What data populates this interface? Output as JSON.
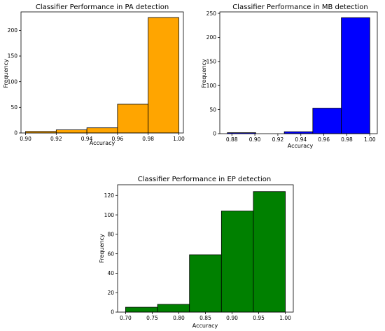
{
  "chart_data": [
    {
      "type": "bar",
      "title": "Classifier Performance in PA detection",
      "xlabel": "Accuracy",
      "ylabel": "Frequency",
      "color": "#ffa500",
      "xlim": [
        0.897,
        1.003
      ],
      "ylim": [
        0,
        236
      ],
      "xticks": [
        0.9,
        0.92,
        0.94,
        0.96,
        0.98,
        1.0
      ],
      "xtick_labels": [
        "0.90",
        "0.92",
        "0.94",
        "0.96",
        "0.98",
        "1.00"
      ],
      "yticks": [
        0,
        50,
        100,
        150,
        200
      ],
      "ytick_labels": [
        "0",
        "50",
        "100",
        "150",
        "200"
      ],
      "bins": [
        {
          "x0": 0.9,
          "x1": 0.92,
          "value": 3
        },
        {
          "x0": 0.92,
          "x1": 0.94,
          "value": 6
        },
        {
          "x0": 0.94,
          "x1": 0.96,
          "value": 10
        },
        {
          "x0": 0.96,
          "x1": 0.98,
          "value": 56
        },
        {
          "x0": 0.98,
          "x1": 1.0,
          "value": 225
        }
      ]
    },
    {
      "type": "bar",
      "title": "Classifier Performance in MB detection",
      "xlabel": "Accuracy",
      "ylabel": "Frequency",
      "color": "#0000ff",
      "xlim": [
        0.8695,
        1.0065
      ],
      "ylim": [
        0,
        253
      ],
      "xticks": [
        0.88,
        0.9,
        0.92,
        0.94,
        0.96,
        0.98,
        1.0
      ],
      "xtick_labels": [
        "0.88",
        "0.90",
        "0.92",
        "0.94",
        "0.96",
        "0.98",
        "1.00"
      ],
      "yticks": [
        0,
        50,
        100,
        150,
        200,
        250
      ],
      "ytick_labels": [
        "0",
        "50",
        "100",
        "150",
        "200",
        "250"
      ],
      "bins": [
        {
          "x0": 0.876,
          "x1": 0.9008,
          "value": 2
        },
        {
          "x0": 0.9008,
          "x1": 0.9256,
          "value": 0
        },
        {
          "x0": 0.9256,
          "x1": 0.9504,
          "value": 4
        },
        {
          "x0": 0.9504,
          "x1": 0.9752,
          "value": 53
        },
        {
          "x0": 0.9752,
          "x1": 1.0,
          "value": 241
        }
      ]
    },
    {
      "type": "bar",
      "title": "Classifier Performance in EP detection",
      "xlabel": "Accuracy",
      "ylabel": "Frequency",
      "color": "#008000",
      "xlim": [
        0.685,
        1.015
      ],
      "ylim": [
        0,
        131
      ],
      "xticks": [
        0.7,
        0.75,
        0.8,
        0.85,
        0.9,
        0.95,
        1.0
      ],
      "xtick_labels": [
        "0.70",
        "0.75",
        "0.80",
        "0.85",
        "0.90",
        "0.95",
        "1.00"
      ],
      "yticks": [
        0,
        20,
        40,
        60,
        80,
        100,
        120
      ],
      "ytick_labels": [
        "0",
        "20",
        "40",
        "60",
        "80",
        "100",
        "120"
      ],
      "bins": [
        {
          "x0": 0.7,
          "x1": 0.76,
          "value": 5
        },
        {
          "x0": 0.76,
          "x1": 0.82,
          "value": 8
        },
        {
          "x0": 0.82,
          "x1": 0.88,
          "value": 59
        },
        {
          "x0": 0.88,
          "x1": 0.94,
          "value": 104
        },
        {
          "x0": 0.94,
          "x1": 1.0,
          "value": 124
        }
      ]
    }
  ]
}
